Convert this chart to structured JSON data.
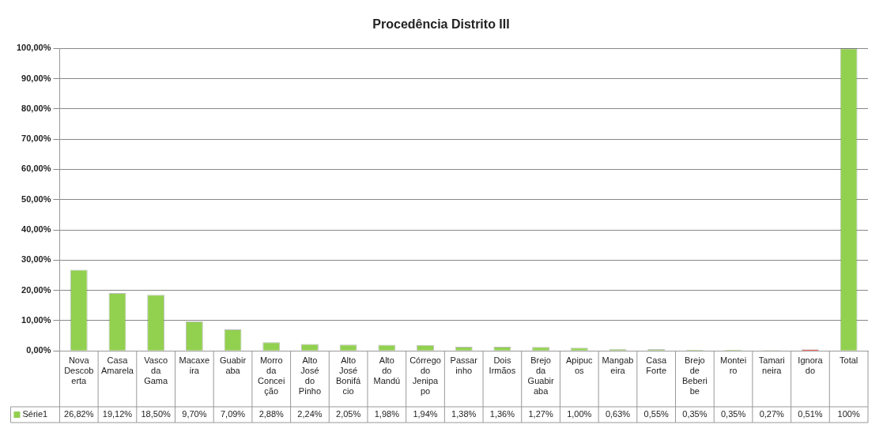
{
  "chart_data": {
    "type": "bar",
    "title": "Procedência Distrito III",
    "categories": [
      "Nova Descoberta",
      "Casa Amarela",
      "Vasco da Gama",
      "Macaxeira",
      "Guabiraba",
      "Morro da Conceição",
      "Alto José do Pinho",
      "Alto José Bonifácio",
      "Alto do Mandú",
      "Córrego do Jenipapo",
      "Passarinho",
      "Dois Irmãos",
      "Brejo da Guabiraba",
      "Apipucos",
      "Mangabeira",
      "Casa Forte",
      "Brejo de Beberibe",
      "Monteiro",
      "Tamarineira",
      "Ignorado",
      "Total"
    ],
    "series": [
      {
        "name": "Série1",
        "color": "#92d050",
        "colors": [
          "#92d050",
          "#92d050",
          "#92d050",
          "#92d050",
          "#92d050",
          "#92d050",
          "#92d050",
          "#92d050",
          "#92d050",
          "#92d050",
          "#92d050",
          "#92d050",
          "#92d050",
          "#92d050",
          "#92d050",
          "#92d050",
          "#92d050",
          "#92d050",
          "#92d050",
          "#ff0000",
          "#92d050"
        ],
        "values": [
          26.82,
          19.12,
          18.5,
          9.7,
          7.09,
          2.88,
          2.24,
          2.05,
          1.98,
          1.94,
          1.38,
          1.36,
          1.27,
          1.0,
          0.63,
          0.55,
          0.35,
          0.35,
          0.27,
          0.51,
          100
        ],
        "value_labels": [
          "26,82%",
          "19,12%",
          "18,50%",
          "9,70%",
          "7,09%",
          "2,88%",
          "2,24%",
          "2,05%",
          "1,98%",
          "1,94%",
          "1,38%",
          "1,36%",
          "1,27%",
          "1,00%",
          "0,63%",
          "0,55%",
          "0,35%",
          "0,35%",
          "0,27%",
          "0,51%",
          "100%"
        ]
      }
    ],
    "ylim": [
      0,
      100
    ],
    "yticks": [
      {
        "value": 0,
        "label": "0,00%"
      },
      {
        "value": 10,
        "label": "10,00%"
      },
      {
        "value": 20,
        "label": "20,00%"
      },
      {
        "value": 30,
        "label": "30,00%"
      },
      {
        "value": 40,
        "label": "40,00%"
      },
      {
        "value": 50,
        "label": "50,00%"
      },
      {
        "value": 60,
        "label": "60,00%"
      },
      {
        "value": 70,
        "label": "70,00%"
      },
      {
        "value": 80,
        "label": "80,00%"
      },
      {
        "value": 90,
        "label": "90,00%"
      },
      {
        "value": 100,
        "label": "100,00%"
      }
    ],
    "grid": "y",
    "legend": "bottom"
  }
}
